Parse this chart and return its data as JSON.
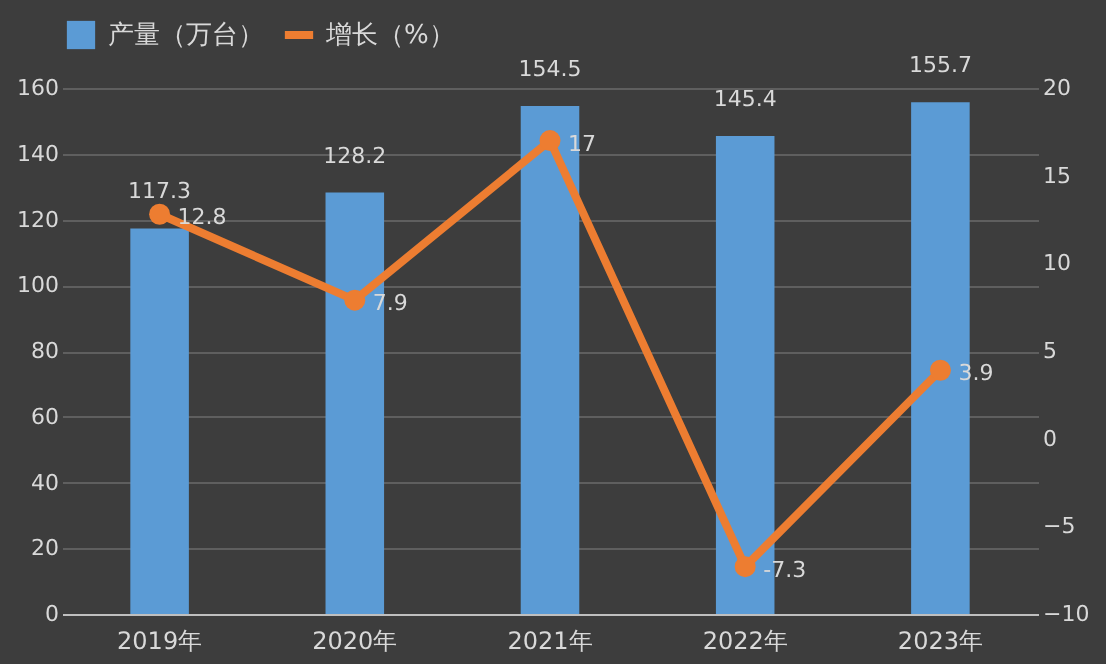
{
  "chart_data": {
    "type": "bar",
    "categories": [
      "2019年",
      "2020年",
      "2021年",
      "2022年",
      "2023年"
    ],
    "series": [
      {
        "name": "产量（万台）",
        "color": "#5b9bd5",
        "values": [
          117.3,
          128.2,
          154.5,
          145.4,
          155.7
        ]
      },
      {
        "name": "增长（%）",
        "type": "line",
        "axis": "y2",
        "color": "#ed7d31",
        "values": [
          12.8,
          7.9,
          17,
          -7.3,
          3.9
        ]
      }
    ],
    "ylim": [
      0,
      160
    ],
    "yticks": [
      0,
      20,
      40,
      60,
      80,
      100,
      120,
      140,
      160
    ],
    "y2lim": [
      -10,
      20
    ],
    "y2ticks": [
      -10,
      -5,
      0,
      5,
      10,
      15,
      20
    ],
    "data_labels": true,
    "grid": "y",
    "legend": "top",
    "marker": "circle",
    "line_style": "solid"
  }
}
